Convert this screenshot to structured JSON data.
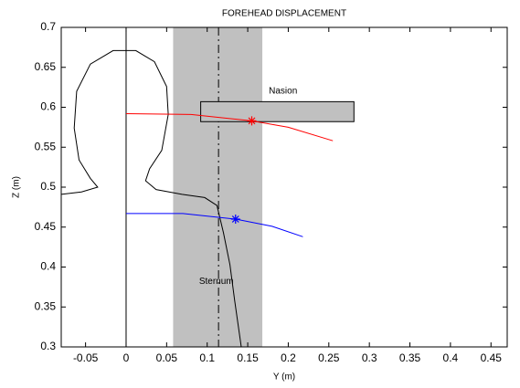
{
  "chart_data": {
    "type": "line",
    "title": "FOREHEAD DISPLACEMENT",
    "xlabel": "Y (m)",
    "ylabel": "Z (m)",
    "xlim": [
      -0.08,
      0.47
    ],
    "ylim": [
      0.3,
      0.7
    ],
    "xticks": [
      -0.05,
      0,
      0.05,
      0.1,
      0.15,
      0.2,
      0.25,
      0.3,
      0.35,
      0.4,
      0.45
    ],
    "yticks": [
      0.3,
      0.35,
      0.4,
      0.45,
      0.5,
      0.55,
      0.6,
      0.65,
      0.7
    ],
    "band": {
      "x": [
        0.058,
        0.168
      ],
      "color": "#c0c0c0"
    },
    "vlines": [
      {
        "x": 0,
        "style": "solid",
        "color": "#000000"
      },
      {
        "x": 0.114,
        "style": "dashed",
        "color": "#000000"
      }
    ],
    "rect": {
      "x": [
        0.092,
        0.281
      ],
      "y": [
        0.582,
        0.607
      ],
      "color": "#c0c0c0"
    },
    "series": [
      {
        "color": "#000000",
        "x": [
          0.142,
          0.134,
          0.128,
          0.12,
          0.112,
          0.097,
          0.069,
          0.037,
          0.024,
          0.029,
          0.044,
          0.052,
          0.05,
          0.035,
          0.012,
          -0.016,
          -0.044,
          -0.061,
          -0.064,
          -0.058,
          -0.044,
          -0.035,
          -0.055,
          -0.08
        ],
        "values": [
          0.3,
          0.357,
          0.403,
          0.443,
          0.477,
          0.487,
          0.491,
          0.497,
          0.508,
          0.523,
          0.546,
          0.591,
          0.626,
          0.657,
          0.671,
          0.671,
          0.654,
          0.62,
          0.574,
          0.534,
          0.511,
          0.5,
          0.494,
          0.491
        ]
      },
      {
        "color": "#ff0000",
        "x": [
          0,
          0.08,
          0.155,
          0.2,
          0.255
        ],
        "values": [
          0.592,
          0.591,
          0.583,
          0.575,
          0.558
        ]
      },
      {
        "color": "#0000ff",
        "x": [
          0,
          0.07,
          0.135,
          0.18,
          0.218
        ],
        "values": [
          0.467,
          0.467,
          0.46,
          0.451,
          0.438
        ]
      }
    ],
    "markers": [
      {
        "x": 0.155,
        "y": 0.583,
        "color": "#ff0000"
      },
      {
        "x": 0.135,
        "y": 0.46,
        "color": "#0000ff"
      }
    ],
    "annotations": [
      {
        "text": "Nasion",
        "x": 0.176,
        "y": 0.62
      },
      {
        "text": "Sternum",
        "x": 0.09,
        "y": 0.382
      }
    ]
  }
}
